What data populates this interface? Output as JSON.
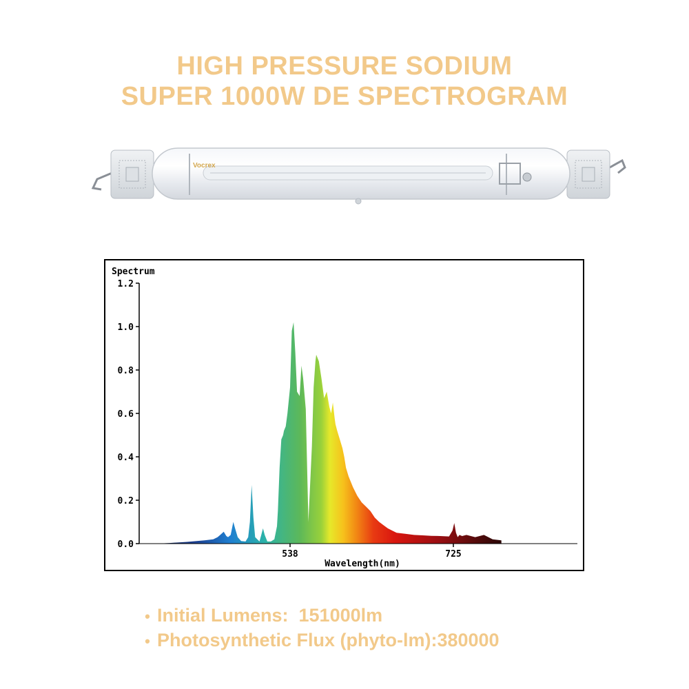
{
  "title": {
    "line1": "HIGH PRESSURE SODIUM",
    "line2": "SUPER 1000W DE SPECTROGRAM"
  },
  "lamp": {
    "brand": "Vocrex",
    "alt": "lamp-image"
  },
  "chart_data": {
    "type": "area",
    "ylabel": "Spectrum",
    "xlabel": "Wavelength(nm)",
    "ylim": [
      0,
      1.2
    ],
    "xlim": [
      380,
      780
    ],
    "yticks": [
      "0.0",
      "0.2",
      "0.4",
      "0.6",
      "0.8",
      "1.0",
      "1.2"
    ],
    "ytick_values": [
      0.0,
      0.2,
      0.4,
      0.6,
      0.8,
      1.0,
      1.2
    ],
    "xticks": [
      "538",
      "725"
    ],
    "xtick_values": [
      538,
      725
    ],
    "grid": false,
    "series": [
      {
        "x": [
          385,
          400,
          420,
          440,
          450,
          455,
          458,
          462,
          465,
          467,
          470,
          473,
          475,
          478,
          482,
          487,
          490,
          492,
          494,
          496,
          498,
          503,
          505,
          507,
          509,
          512,
          516,
          520,
          523,
          524,
          526,
          528,
          530,
          531,
          533,
          535,
          538,
          540,
          542,
          544,
          546,
          549,
          551,
          553,
          556,
          559,
          563,
          565,
          567,
          568,
          569,
          571,
          574,
          577,
          580,
          583,
          585,
          587,
          589,
          590,
          592,
          595,
          598,
          600,
          602,
          605,
          610,
          615,
          620,
          625,
          630,
          635,
          640,
          645,
          650,
          655,
          660,
          670,
          680,
          690,
          700,
          710,
          720,
          724,
          726,
          728,
          730,
          732,
          735,
          740,
          750,
          760,
          770,
          780
        ],
        "y": [
          0.0,
          0.003,
          0.008,
          0.015,
          0.02,
          0.03,
          0.04,
          0.055,
          0.035,
          0.03,
          0.04,
          0.1,
          0.07,
          0.03,
          0.012,
          0.01,
          0.03,
          0.1,
          0.27,
          0.12,
          0.03,
          0.01,
          0.04,
          0.07,
          0.04,
          0.01,
          0.01,
          0.02,
          0.08,
          0.15,
          0.35,
          0.48,
          0.5,
          0.52,
          0.54,
          0.6,
          0.72,
          0.98,
          1.02,
          0.88,
          0.7,
          0.68,
          0.82,
          0.76,
          0.62,
          0.1,
          0.45,
          0.72,
          0.84,
          0.87,
          0.86,
          0.84,
          0.76,
          0.67,
          0.7,
          0.63,
          0.6,
          0.65,
          0.58,
          0.55,
          0.52,
          0.48,
          0.44,
          0.4,
          0.35,
          0.31,
          0.26,
          0.22,
          0.19,
          0.17,
          0.15,
          0.12,
          0.1,
          0.085,
          0.07,
          0.06,
          0.05,
          0.045,
          0.04,
          0.038,
          0.036,
          0.035,
          0.033,
          0.06,
          0.095,
          0.05,
          0.03,
          0.04,
          0.035,
          0.04,
          0.03,
          0.04,
          0.02,
          0.015
        ]
      }
    ]
  },
  "specs": [
    "Initial Lumens:  151000lm",
    "Photosynthetic Flux (phyto-lm):380000"
  ]
}
